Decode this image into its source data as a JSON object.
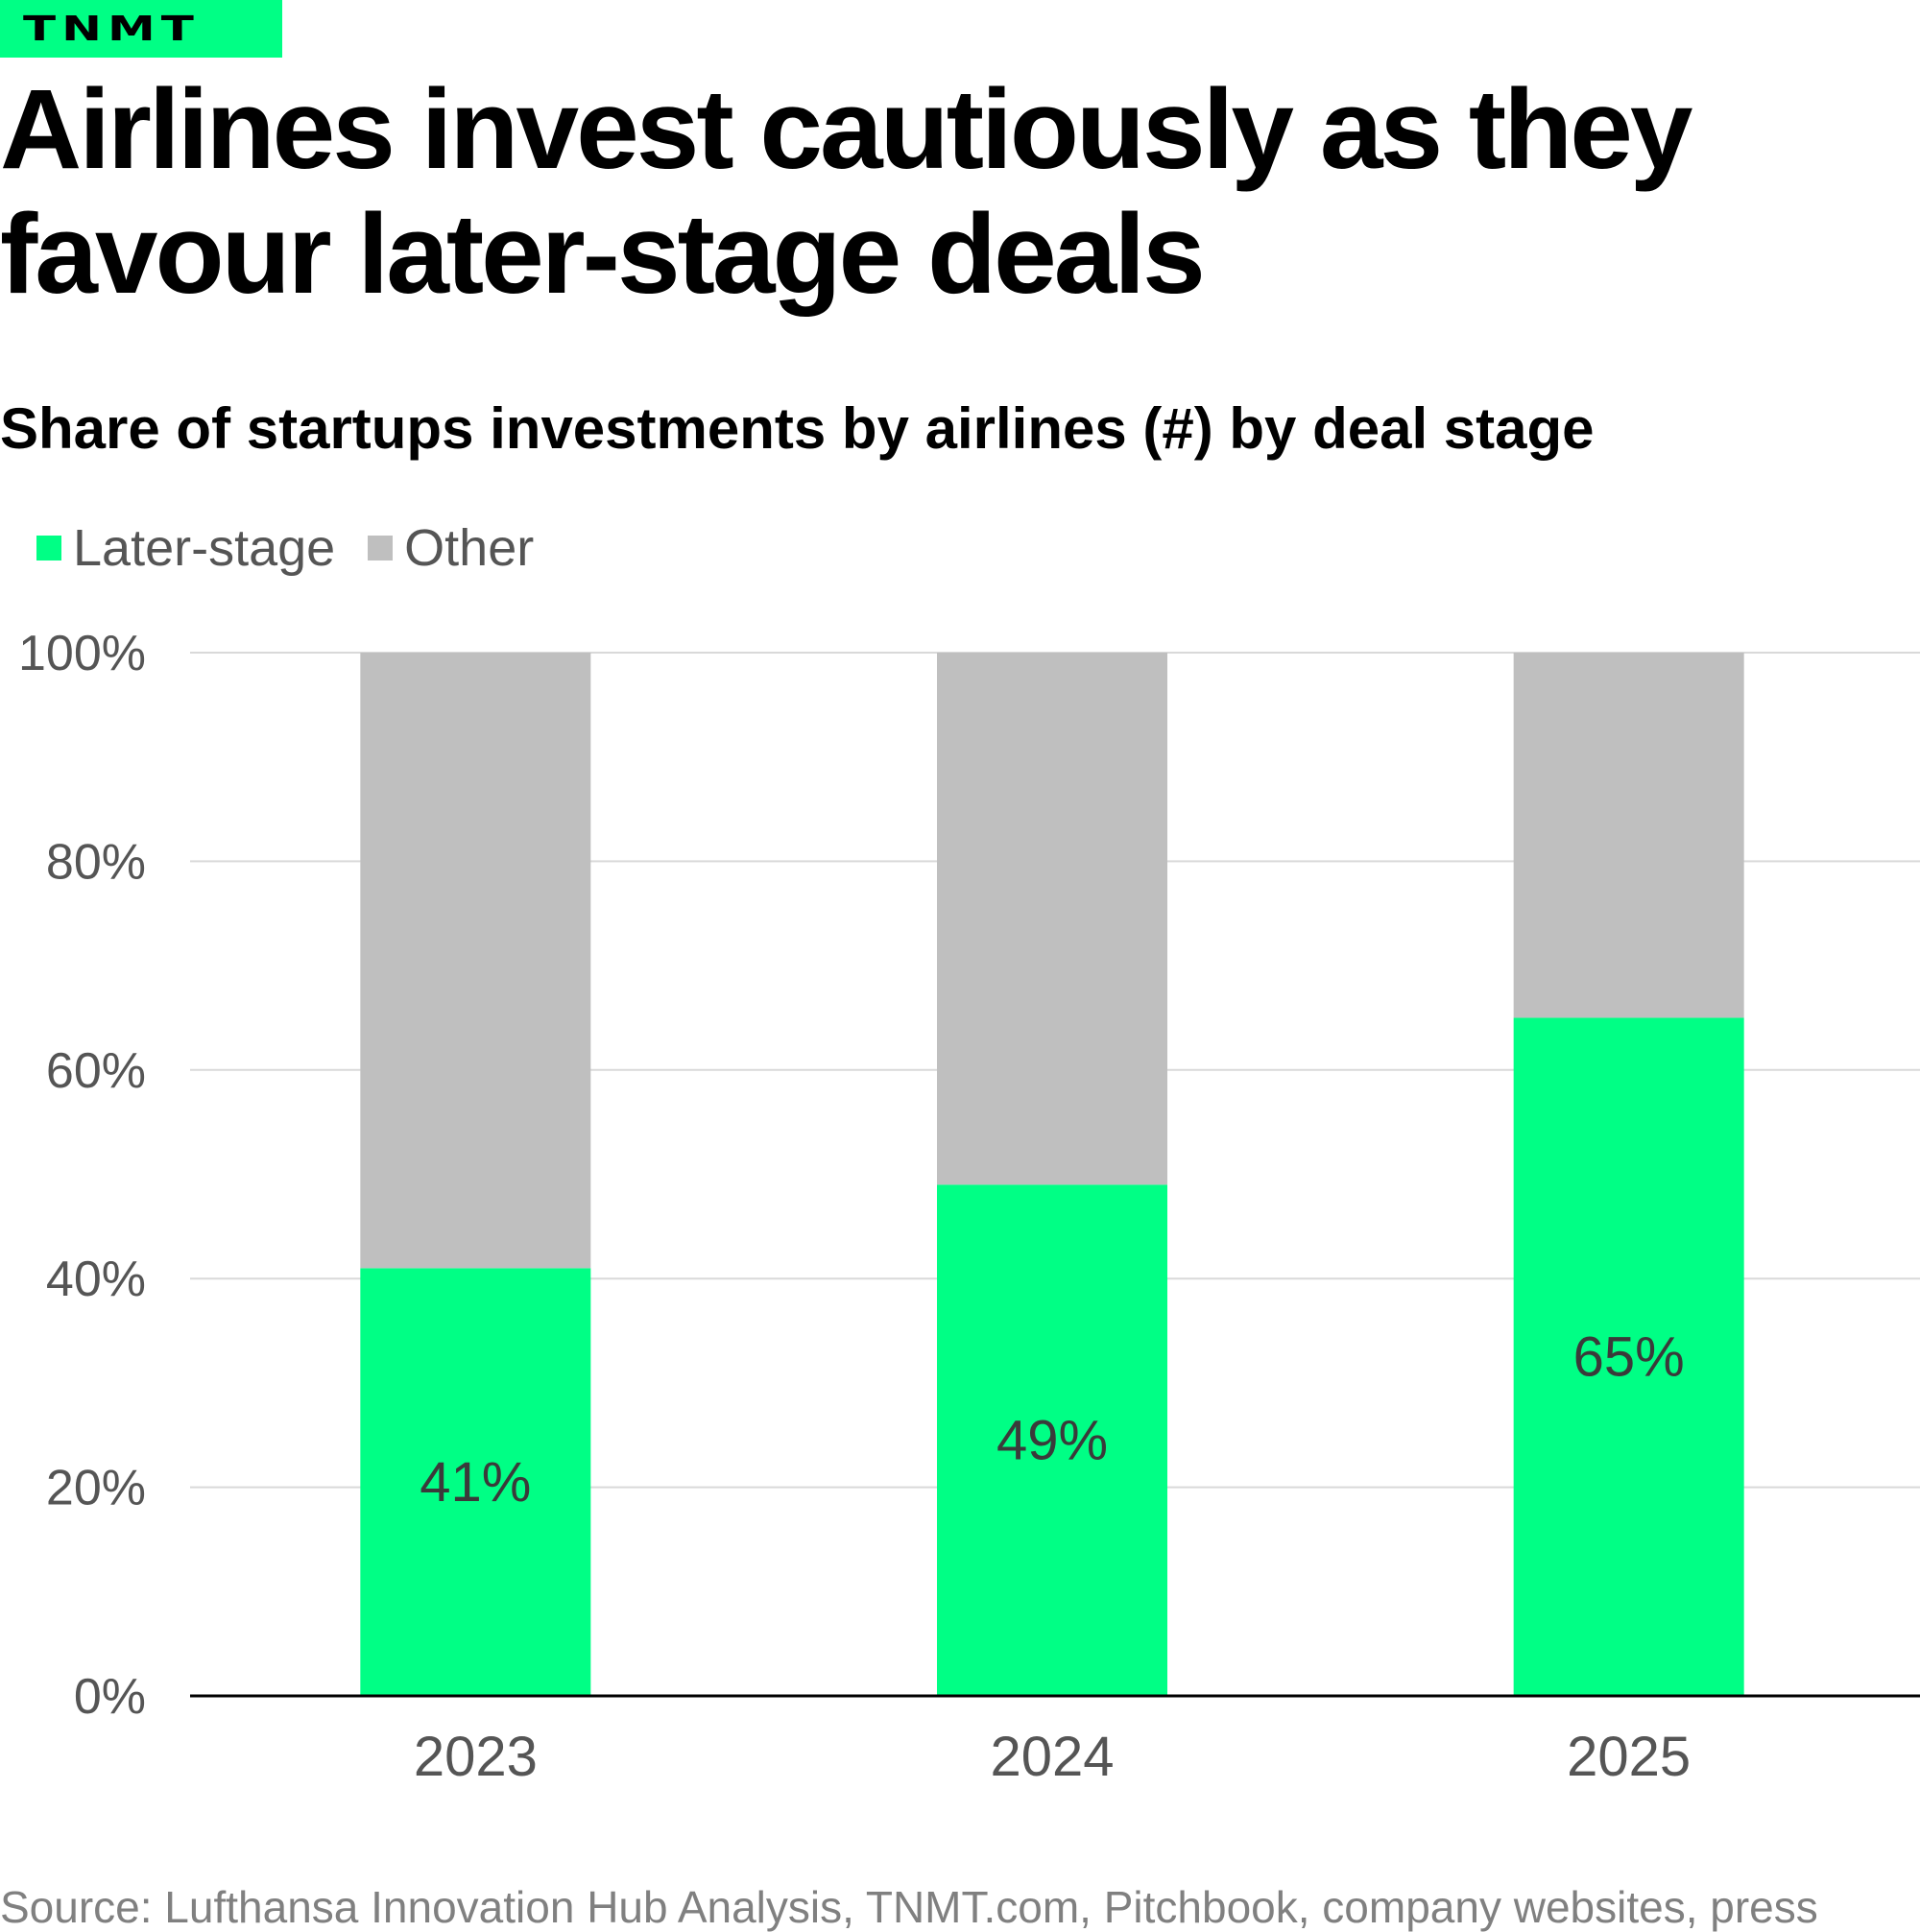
{
  "brand": {
    "logo_text": "TNMT",
    "color": "#00FF85"
  },
  "header": {
    "title": "Airlines invest cautiously as they favour later-stage deals",
    "subtitle": "Share of startups investments by airlines (#) by deal stage"
  },
  "source": "Source: Lufthansa Innovation Hub Analysis, TNMT.com, Pitchbook, company websites, press",
  "chart_data": {
    "type": "bar",
    "stacked": true,
    "title": "Airlines invest cautiously as they favour later-stage deals",
    "subtitle": "Share of startups investments by airlines (#) by deal stage",
    "xlabel": "",
    "ylabel": "",
    "categories": [
      "2023",
      "2024",
      "2025"
    ],
    "series": [
      {
        "name": "Later-stage",
        "color": "#00FF85",
        "values": [
          41,
          49,
          65
        ],
        "labels": [
          "41%",
          "49%",
          "65%"
        ]
      },
      {
        "name": "Other",
        "color": "#BFBFBF",
        "values": [
          59,
          51,
          35
        ]
      }
    ],
    "ylim": [
      0,
      100
    ],
    "yticks": [
      0,
      20,
      40,
      60,
      80,
      100
    ],
    "ytick_labels": [
      "0%",
      "20%",
      "40%",
      "60%",
      "80%",
      "100%"
    ],
    "grid": true,
    "legend": {
      "placement": "top-left",
      "entries": [
        "Later-stage",
        "Other"
      ]
    }
  }
}
